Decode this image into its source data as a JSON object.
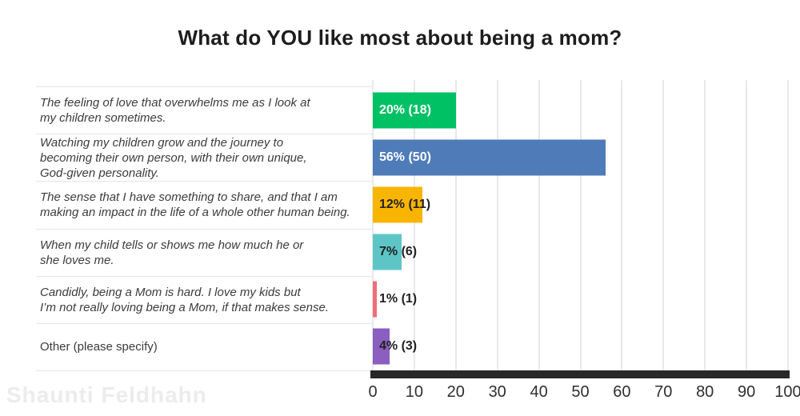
{
  "watermark": "Shaunti Feldhahn",
  "chart_data": {
    "type": "bar",
    "orientation": "horizontal",
    "title": "What do YOU like most about being a mom?",
    "categories": [
      "The feeling of love that overwhelms me as I look at\nmy children sometimes.",
      "Watching my children grow and the journey to\nbecoming their own person, with their own unique,\nGod-given personality.",
      "The sense that I have something to share, and that I am\nmaking an impact in the life of a whole other human being.",
      "When my child tells or shows me how much he or\nshe loves me.",
      "Candidly, being a Mom is hard. I love my kids but\nI’m not really loving being a Mom, if that makes sense.",
      "Other (please specify)"
    ],
    "values": [
      20,
      56,
      12,
      7,
      1,
      4
    ],
    "counts": [
      18,
      50,
      11,
      6,
      1,
      3
    ],
    "value_labels": [
      "20% (18)",
      "56% (50)",
      "12% (11)",
      "7% (6)",
      "1% (1)",
      "4% (3)"
    ],
    "bar_colors": [
      "#00c164",
      "#4f7cb9",
      "#f8b500",
      "#5ec5c7",
      "#f06d7a",
      "#8a5fc0"
    ],
    "value_label_colors": [
      "#ffffff",
      "#ffffff",
      "#222222",
      "#222222",
      "#222222",
      "#222222"
    ],
    "label_styles": [
      "italic",
      "italic",
      "italic",
      "italic",
      "italic",
      "normal"
    ],
    "xlabel": "",
    "ylabel": "",
    "xlim": [
      0,
      100
    ],
    "x_ticks": [
      0,
      10,
      20,
      30,
      40,
      50,
      60,
      70,
      80,
      90,
      100
    ],
    "grid": true,
    "legend_position": "none",
    "axis_bar_color": "#282828",
    "gridline_color": "#e9e9e9",
    "divider_color": "#e4e4e4"
  }
}
